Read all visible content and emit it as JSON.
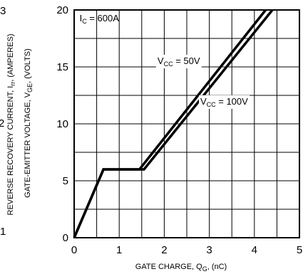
{
  "chart_data": {
    "type": "line",
    "xlabel": {
      "main": "GATE CHARGE, Q",
      "sub": "G",
      "tail": ", (nC)"
    },
    "ylabel": {
      "main": "GATE-EMITTER VOLTAGE, V",
      "sub": "GE",
      "tail": ", (VOLTS)"
    },
    "left_cut_label": {
      "main": "REVERSE RECOVERY CURRENT, I",
      "sub": "rr",
      "tail": ", (AMPERES)"
    },
    "left_cut_ticks": [
      "3",
      "2",
      "1"
    ],
    "xlim": [
      0,
      5
    ],
    "ylim": [
      0,
      20
    ],
    "x_ticks": [
      0,
      1,
      2,
      3,
      4,
      5
    ],
    "y_ticks": [
      0,
      5,
      10,
      15,
      20
    ],
    "x_minor": 0.5,
    "y_minor": 2.5,
    "grid": true,
    "annotation": {
      "main": "I",
      "sub": "C",
      "tail": " = 600A"
    },
    "series": [
      {
        "label": {
          "main": "V",
          "sub": "CC",
          "tail": " = 50V"
        },
        "x": [
          0,
          0.65,
          1.45,
          4.25
        ],
        "y": [
          0,
          6,
          6,
          20
        ]
      },
      {
        "label": {
          "main": "V",
          "sub": "CC",
          "tail": " = 100V"
        },
        "x": [
          0,
          0.65,
          1.55,
          4.4
        ],
        "y": [
          0,
          6,
          6,
          20
        ]
      }
    ]
  }
}
